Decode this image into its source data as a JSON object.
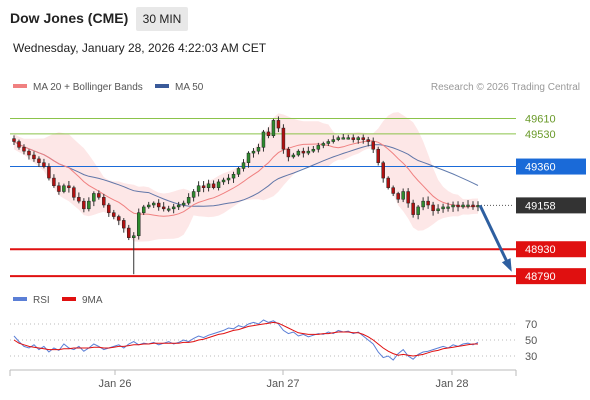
{
  "header": {
    "symbol": "Dow Jones (CME)",
    "timeframe": "30 MIN",
    "datetime": "Wednesday, January 28, 2026 4:22:03 AM CET"
  },
  "legend": {
    "ma20_label": "MA 20 + Bollinger Bands",
    "ma50_label": "MA 50",
    "credit": "Research © 2026 Trading Central",
    "ma20_color": "#f08080",
    "ma50_color": "#3a5a99"
  },
  "rsi_legend": {
    "rsi_label": "RSI",
    "ma_label": "9MA",
    "rsi_color": "#5b7fd6",
    "ma_color": "#e01010"
  },
  "levels": [
    {
      "value": 49610,
      "label": "49610",
      "kind": "resistance-minor",
      "color": "#8bc34a"
    },
    {
      "value": 49530,
      "label": "49530",
      "kind": "resistance-minor",
      "color": "#8bc34a"
    },
    {
      "value": 49360,
      "label": "49360",
      "kind": "pivot",
      "color": "#1a6ad8"
    },
    {
      "value": 49158,
      "label": "49158",
      "kind": "last-price",
      "color": "#333333"
    },
    {
      "value": 48930,
      "label": "48930",
      "kind": "support",
      "color": "#e01010"
    },
    {
      "value": 48790,
      "label": "48790",
      "kind": "support",
      "color": "#e01010"
    }
  ],
  "chart_data": [
    {
      "type": "candlestick",
      "title": "",
      "x_ticks": [
        "Jan 26",
        "Jan 27",
        "Jan 28"
      ],
      "ylim": [
        48770,
        49680
      ],
      "last_price": 49158,
      "projection": {
        "from": 49158,
        "to": 48790,
        "direction": "down",
        "color": "#2e5fa0"
      },
      "close": [
        49490,
        49460,
        49440,
        49420,
        49400,
        49380,
        49360,
        49300,
        49260,
        49230,
        49260,
        49250,
        49200,
        49180,
        49140,
        49180,
        49220,
        49200,
        49160,
        49120,
        49100,
        49080,
        49040,
        48990,
        49000,
        49120,
        49150,
        49160,
        49170,
        49150,
        49140,
        49140,
        49150,
        49160,
        49170,
        49200,
        49230,
        49260,
        49250,
        49270,
        49250,
        49280,
        49290,
        49300,
        49320,
        49350,
        49380,
        49430,
        49440,
        49460,
        49540,
        49520,
        49600,
        49560,
        49450,
        49410,
        49420,
        49440,
        49430,
        49440,
        49450,
        49470,
        49480,
        49490,
        49500,
        49510,
        49510,
        49510,
        49500,
        49510,
        49500,
        49490,
        49450,
        49380,
        49300,
        49250,
        49220,
        49190,
        49230,
        49170,
        49110,
        49150,
        49180,
        49160,
        49130,
        49140,
        49150,
        49150,
        49160,
        49150,
        49160,
        49160,
        49150,
        49158
      ],
      "series": [
        {
          "name": "MA 20 + Bollinger Bands"
        },
        {
          "name": "MA 50"
        }
      ]
    },
    {
      "type": "line",
      "title": "",
      "y_ticks": [
        70,
        50,
        30
      ],
      "ylim": [
        15,
        85
      ],
      "series": [
        {
          "name": "RSI",
          "values": [
            55,
            48,
            42,
            40,
            44,
            38,
            42,
            35,
            40,
            37,
            45,
            40,
            38,
            42,
            36,
            40,
            45,
            42,
            38,
            40,
            42,
            44,
            40,
            45,
            48,
            44,
            46,
            45,
            47,
            44,
            46,
            48,
            45,
            47,
            50,
            48,
            52,
            55,
            53,
            56,
            58,
            60,
            62,
            65,
            64,
            68,
            66,
            70,
            72,
            70,
            75,
            72,
            74,
            70,
            62,
            58,
            60,
            55,
            57,
            54,
            56,
            58,
            57,
            60,
            58,
            62,
            60,
            61,
            58,
            60,
            55,
            50,
            45,
            35,
            28,
            30,
            25,
            33,
            38,
            30,
            26,
            32,
            35,
            36,
            38,
            40,
            42,
            40,
            44,
            42,
            45,
            46,
            44,
            47
          ]
        },
        {
          "name": "9MA",
          "values": [
            50,
            46,
            44,
            42,
            41,
            40,
            39,
            38,
            38,
            38,
            39,
            39,
            40,
            40,
            40,
            40,
            41,
            41,
            40,
            40,
            41,
            42,
            42,
            43,
            44,
            44,
            45,
            45,
            46,
            46,
            46,
            46,
            46,
            46,
            47,
            47,
            48,
            50,
            51,
            53,
            55,
            57,
            58,
            60,
            62,
            63,
            65,
            67,
            68,
            69,
            70,
            71,
            72,
            71,
            68,
            65,
            62,
            59,
            58,
            57,
            57,
            57,
            58,
            58,
            59,
            60,
            60,
            60,
            59,
            59,
            57,
            54,
            50,
            45,
            40,
            36,
            33,
            31,
            32,
            31,
            30,
            31,
            32,
            34,
            36,
            37,
            39,
            40,
            41,
            42,
            43,
            44,
            45,
            45
          ]
        }
      ]
    }
  ]
}
